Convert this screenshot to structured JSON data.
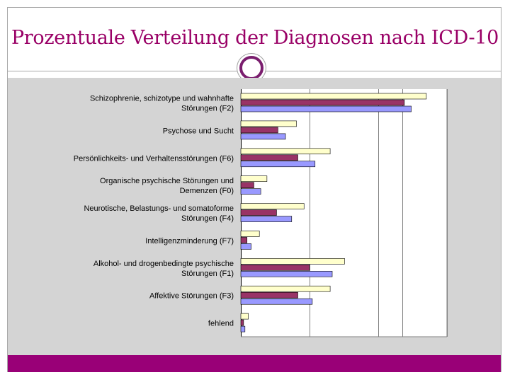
{
  "slide": {
    "title": "Prozentuale Verteilung der Diagnosen nach ICD-10"
  },
  "colors": {
    "title": "#990066",
    "footer_band": "#990077",
    "series": [
      "#ffffcc",
      "#993366",
      "#9999ff"
    ]
  },
  "chart_data": {
    "type": "bar",
    "orientation": "horizontal",
    "categories": [
      [
        "Schizophrenie, schizotype und wahnhafte",
        "Störungen (F2)"
      ],
      [
        "Psychose und Sucht"
      ],
      [
        "Persönlichkeits- und Verhaltensstörungen (F6)"
      ],
      [
        "Organische psychische Störungen und",
        "Demenzen (F0)"
      ],
      [
        "Neurotische, Belastungs- und somatoforme",
        "Störungen (F4)"
      ],
      [
        "Intelligenzminderung (F7)"
      ],
      [
        "Alkohol- und drogenbedingte psychische",
        "Störungen (F1)"
      ],
      [
        "Affektive Störungen (F3)"
      ],
      [
        "fehlend"
      ]
    ],
    "series": [
      {
        "values": [
          27.0,
          8.1,
          13.0,
          3.8,
          9.2,
          2.7,
          15.1,
          13.0,
          1.1
        ],
        "color": "#ffffcc"
      },
      {
        "values": [
          23.8,
          5.4,
          8.3,
          1.9,
          5.2,
          0.9,
          10.0,
          8.3,
          0.4
        ],
        "color": "#993366"
      },
      {
        "values": [
          24.8,
          6.5,
          10.8,
          2.9,
          7.4,
          1.5,
          13.3,
          10.4,
          0.6
        ],
        "color": "#9999ff"
      }
    ],
    "xlim": [
      0,
      30
    ],
    "gridlines": [
      0,
      10,
      20,
      23.5,
      30
    ],
    "grid": true,
    "legend": "none"
  }
}
